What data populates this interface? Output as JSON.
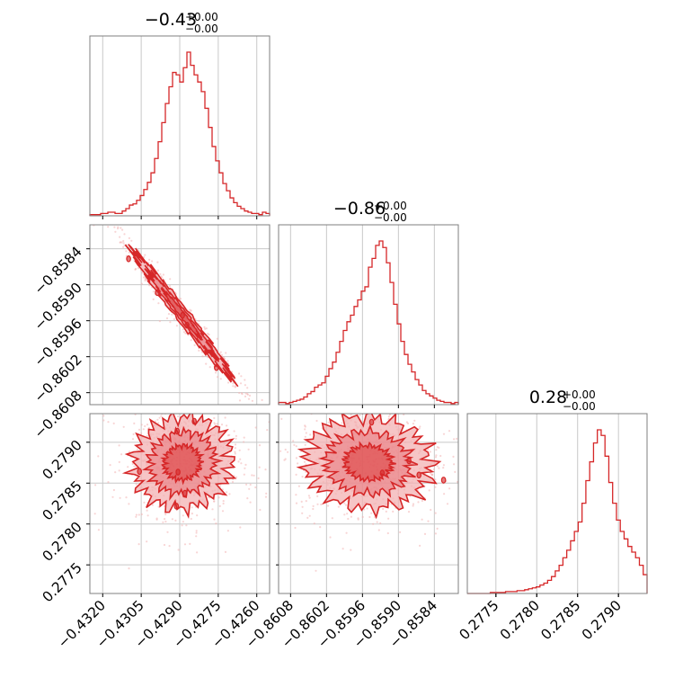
{
  "chart_data": {
    "type": "corner",
    "color": "#d62728",
    "fill_light": "#f3b2b3",
    "fill_mid": "#e8747a",
    "grid": true,
    "parameters": [
      {
        "title_main": "−0.43",
        "title_plus": "+0.00",
        "title_minus": "−0.00",
        "range": [
          -0.4325,
          -0.4255
        ],
        "ticks": [
          -0.432,
          -0.4305,
          -0.429,
          -0.4275,
          -0.426
        ],
        "tick_labels": [
          "−0.4320",
          "−0.4305",
          "−0.4290",
          "−0.4275",
          "−0.4260"
        ],
        "hist": [
          1,
          1,
          1,
          2,
          2,
          3,
          3,
          2,
          2,
          4,
          6,
          9,
          10,
          13,
          17,
          22,
          28,
          36,
          48,
          62,
          78,
          94,
          108,
          120,
          118,
          112,
          124,
          137,
          126,
          118,
          112,
          104,
          90,
          74,
          58,
          46,
          36,
          27,
          21,
          15,
          11,
          8,
          6,
          4,
          3,
          2,
          2,
          1,
          3,
          2
        ],
        "mean": -0.4289,
        "sd": 0.00095
      },
      {
        "title_main": "−0.86",
        "title_plus": "+0.00",
        "title_minus": "−0.00",
        "range": [
          -0.861,
          -0.858
        ],
        "ticks": [
          -0.8608,
          -0.8602,
          -0.8596,
          -0.859,
          -0.8584
        ],
        "tick_labels": [
          "−0.8608",
          "−0.8602",
          "−0.8596",
          "−0.8590",
          "−0.8584"
        ],
        "hist": [
          2,
          2,
          1,
          2,
          3,
          4,
          5,
          7,
          10,
          12,
          16,
          18,
          20,
          26,
          33,
          39,
          48,
          58,
          68,
          76,
          82,
          90,
          96,
          104,
          108,
          126,
          134,
          146,
          150,
          144,
          130,
          112,
          92,
          74,
          58,
          46,
          37,
          30,
          23,
          18,
          13,
          10,
          8,
          6,
          4,
          3,
          2,
          2,
          1,
          2
        ],
        "mean": -0.8595,
        "sd": 0.00052
      },
      {
        "title_main": "0.28",
        "title_plus": "+0.00",
        "title_minus": "−0.00",
        "range": [
          0.27715,
          0.27935
        ],
        "ticks": [
          0.2775,
          0.278,
          0.2785,
          0.279
        ],
        "tick_labels": [
          "0.2775",
          "0.2780",
          "0.2785",
          "0.2790"
        ],
        "hist": [
          0,
          0,
          0,
          0,
          0,
          0,
          1,
          1,
          1,
          1,
          2,
          2,
          2,
          3,
          3,
          4,
          5,
          6,
          7,
          9,
          11,
          14,
          18,
          24,
          30,
          38,
          46,
          56,
          66,
          76,
          96,
          120,
          140,
          160,
          174,
          168,
          146,
          118,
          96,
          78,
          66,
          58,
          50,
          44,
          38,
          30,
          20
        ],
        "mean": 0.27875,
        "sd": 0.00028
      }
    ],
    "pairs": [
      {
        "x_param": 0,
        "y_param": 1,
        "corr": -0.985
      },
      {
        "x_param": 0,
        "y_param": 2,
        "corr": 0.05
      },
      {
        "x_param": 1,
        "y_param": 2,
        "corr": -0.05
      }
    ]
  }
}
